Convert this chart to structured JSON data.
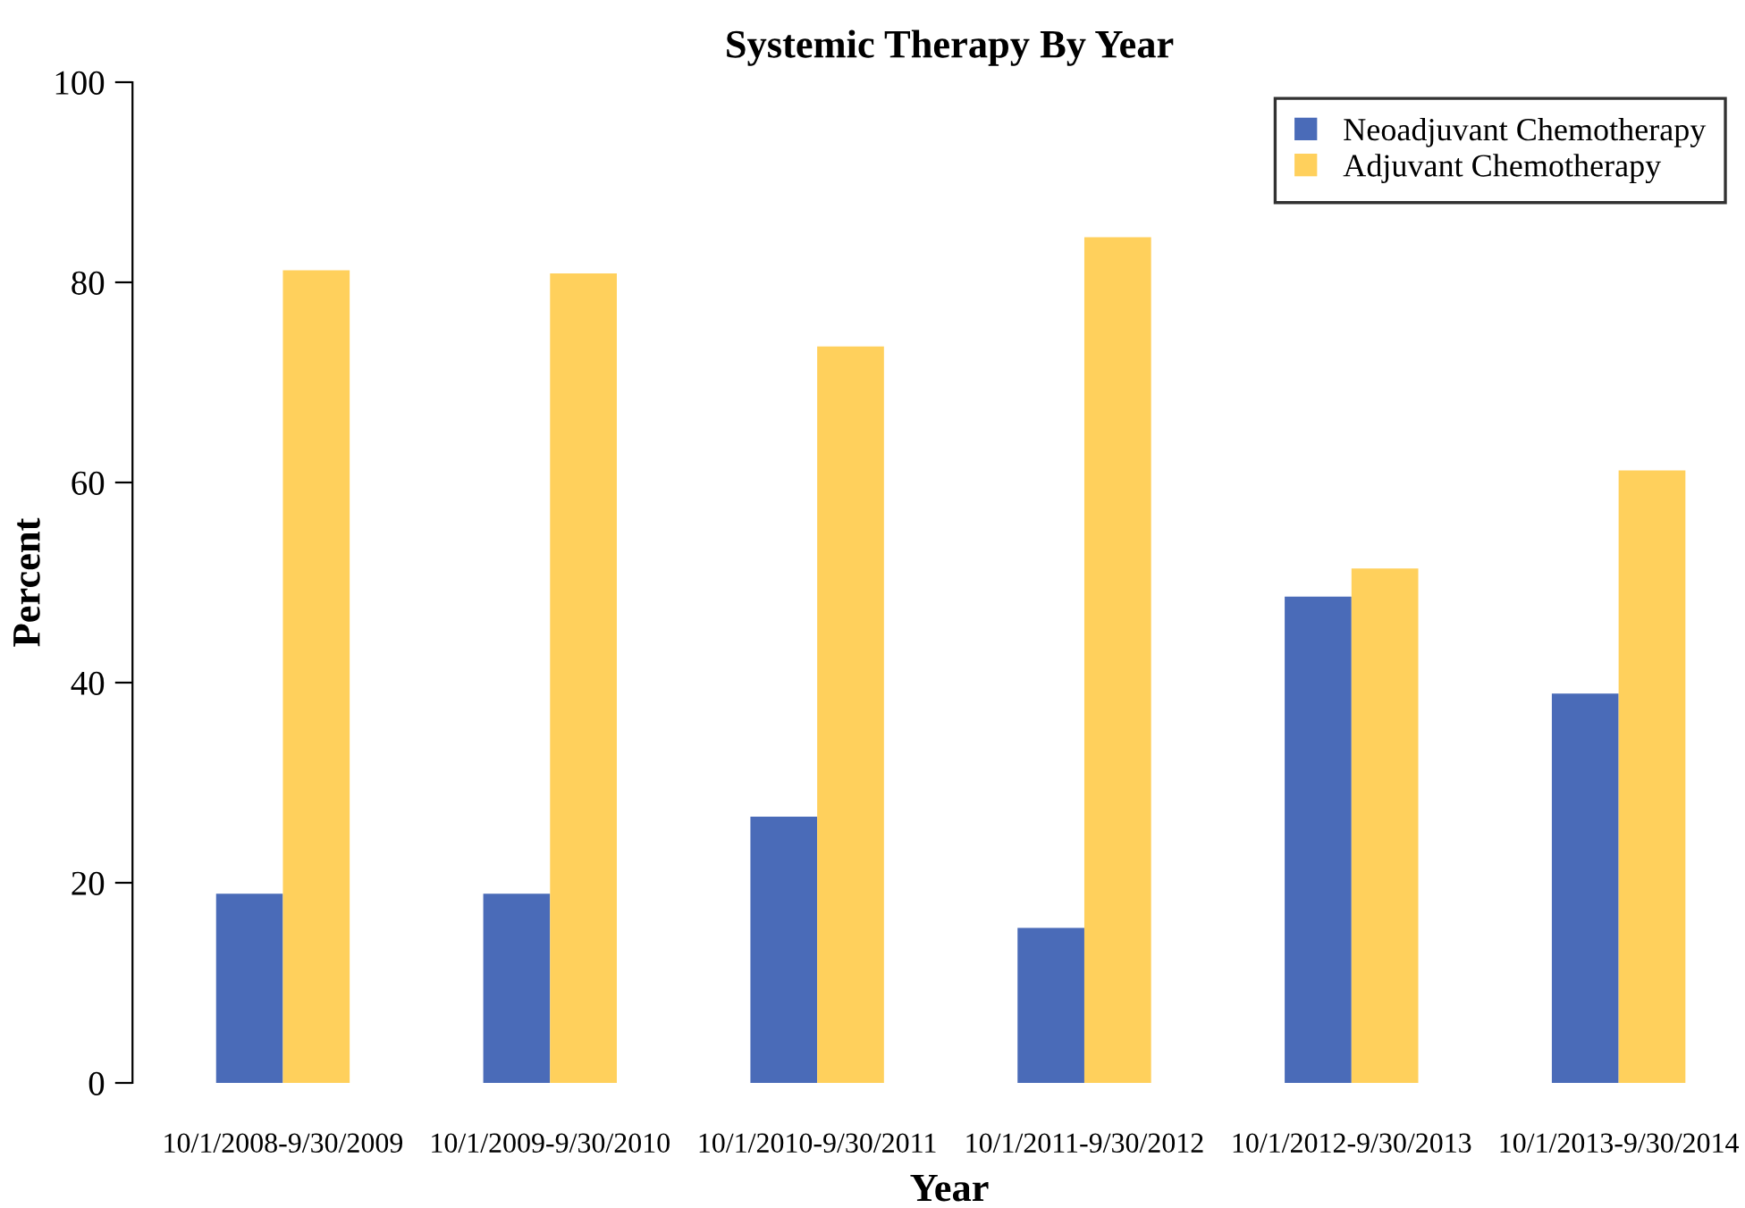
{
  "chart_data": {
    "type": "bar",
    "title": "Systemic Therapy By Year",
    "xlabel": "Year",
    "ylabel": "Percent",
    "categories": [
      "10/1/2008-9/30/2009",
      "10/1/2009-9/30/2010",
      "10/1/2010-9/30/2011",
      "10/1/2011-9/30/2012",
      "10/1/2012-9/30/2013",
      "10/1/2013-9/30/2014"
    ],
    "series": [
      {
        "name": "Neoadjuvant Chemotherapy",
        "color": "#4a6bb8",
        "values": [
          18.9,
          18.9,
          26.6,
          15.5,
          48.6,
          38.9
        ]
      },
      {
        "name": "Adjuvant Chemotherapy",
        "color": "#ffd05c",
        "values": [
          81.2,
          80.9,
          73.6,
          84.5,
          51.4,
          61.2
        ]
      }
    ],
    "ylim": [
      0,
      100
    ],
    "yticks": [
      0,
      20,
      40,
      60,
      80,
      100
    ],
    "grid": false,
    "legend": "top right"
  }
}
